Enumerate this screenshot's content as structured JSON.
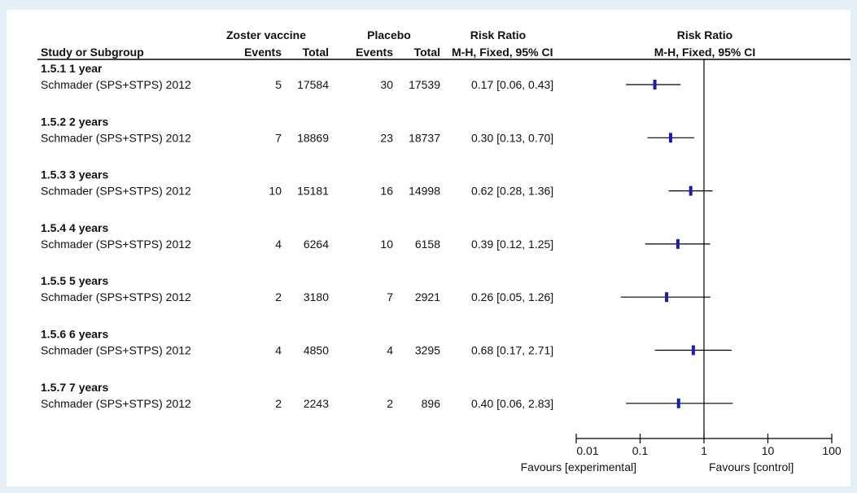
{
  "header": {
    "group1_title": "Zoster vaccine",
    "group2_title": "Placebo",
    "rr_title_left": "Risk Ratio",
    "rr_title_right": "Risk Ratio",
    "study_col": "Study or Subgroup",
    "events1": "Events",
    "total1": "Total",
    "events2": "Events",
    "total2": "Total",
    "method_left": "M-H, Fixed, 95% CI",
    "method_right": "M-H, Fixed, 95% CI"
  },
  "footer": {
    "favours_left": "Favours [experimental]",
    "favours_right": "Favours [control]"
  },
  "colors": {
    "marker": "#1c1cb0",
    "line": "#000000"
  },
  "chart_data": {
    "type": "forest",
    "x_scale": "log",
    "xlim": [
      0.01,
      100
    ],
    "x_ticks": [
      0.01,
      0.1,
      1,
      10,
      100
    ],
    "x_tick_labels": [
      "0.01",
      "0.1",
      "1",
      "10",
      "100"
    ],
    "reference_line": 1,
    "subgroups": [
      {
        "label": "1.5.1 1 year",
        "study": "Schmader (SPS+STPS) 2012",
        "events1": "5",
        "total1": "17584",
        "events2": "30",
        "total2": "17539",
        "ci_text": "0.17 [0.06, 0.43]",
        "rr": 0.17,
        "lo": 0.06,
        "hi": 0.43
      },
      {
        "label": "1.5.2 2 years",
        "study": "Schmader (SPS+STPS) 2012",
        "events1": "7",
        "total1": "18869",
        "events2": "23",
        "total2": "18737",
        "ci_text": "0.30 [0.13, 0.70]",
        "rr": 0.3,
        "lo": 0.13,
        "hi": 0.7
      },
      {
        "label": "1.5.3 3 years",
        "study": "Schmader (SPS+STPS) 2012",
        "events1": "10",
        "total1": "15181",
        "events2": "16",
        "total2": "14998",
        "ci_text": "0.62 [0.28, 1.36]",
        "rr": 0.62,
        "lo": 0.28,
        "hi": 1.36
      },
      {
        "label": "1.5.4 4 years",
        "study": "Schmader (SPS+STPS) 2012",
        "events1": "4",
        "total1": "6264",
        "events2": "10",
        "total2": "6158",
        "ci_text": "0.39 [0.12, 1.25]",
        "rr": 0.39,
        "lo": 0.12,
        "hi": 1.25
      },
      {
        "label": "1.5.5 5 years",
        "study": "Schmader (SPS+STPS) 2012",
        "events1": "2",
        "total1": "3180",
        "events2": "7",
        "total2": "2921",
        "ci_text": "0.26 [0.05, 1.26]",
        "rr": 0.26,
        "lo": 0.05,
        "hi": 1.26
      },
      {
        "label": "1.5.6 6 years",
        "study": "Schmader (SPS+STPS) 2012",
        "events1": "4",
        "total1": "4850",
        "events2": "4",
        "total2": "3295",
        "ci_text": "0.68 [0.17, 2.71]",
        "rr": 0.68,
        "lo": 0.17,
        "hi": 2.71
      },
      {
        "label": "1.5.7 7 years",
        "study": "Schmader (SPS+STPS) 2012",
        "events1": "2",
        "total1": "2243",
        "events2": "2",
        "total2": "896",
        "ci_text": "0.40 [0.06, 2.83]",
        "rr": 0.4,
        "lo": 0.06,
        "hi": 2.83
      }
    ]
  }
}
